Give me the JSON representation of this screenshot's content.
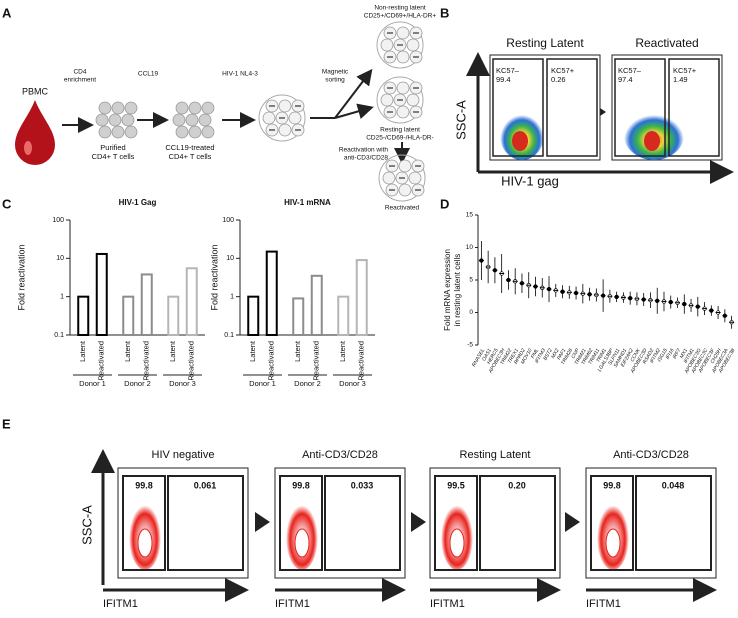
{
  "panel_labels": [
    "A",
    "B",
    "C",
    "D",
    "E"
  ],
  "panel_a": {
    "source": "PBMC",
    "step1": [
      "CD4",
      "enrichment"
    ],
    "cells1": [
      "Purified",
      "CD4+ T cells"
    ],
    "step2": "CCL19",
    "cells2": [
      "CCL19-treated",
      "CD4+ T cells"
    ],
    "step3": "HIV-1 NL4-3",
    "step4": [
      "Magnetic",
      "sorting"
    ],
    "nonresting": [
      "Non-resting latent",
      "CD25+/CD69+/HLA-DR+"
    ],
    "resting": [
      "Resting latent",
      "CD25-/CD69-/HLA-DR-"
    ],
    "step5": [
      "Reactivation with",
      "anti-CD3/CD28"
    ],
    "result": "Reactivated"
  },
  "panel_b": {
    "y_label": "SSC-A",
    "x_label": "HIV-1 gag",
    "plots": [
      {
        "title": "Resting Latent",
        "gates": [
          {
            "name": "KC57–",
            "value": "99.4"
          },
          {
            "name": "KC57+",
            "value": "0.26"
          }
        ]
      },
      {
        "title": "Reactivated",
        "gates": [
          {
            "name": "KC57–",
            "value": "97.4"
          },
          {
            "name": "KC57+",
            "value": "1.49"
          }
        ]
      }
    ]
  },
  "chart_data": [
    {
      "type": "bar",
      "title": "HIV-1 Gag",
      "y_label": "Fold reactivation",
      "categories": [
        "Latent",
        "Reactivated",
        "Latent",
        "Reactivated",
        "Latent",
        "Reactivated"
      ],
      "groups": [
        "Donor 1",
        "Donor 2",
        "Donor 3"
      ],
      "values": [
        1,
        13,
        1,
        3.8,
        1,
        5.5
      ],
      "colors": [
        "#000000",
        "#000000",
        "#8c8c8c",
        "#8c8c8c",
        "#b5b5b5",
        "#b5b5b5"
      ],
      "log_scale": true,
      "ylim": [
        0.1,
        100
      ],
      "yticks": [
        0.1,
        1,
        10,
        100
      ]
    },
    {
      "type": "bar",
      "title": "HIV-1 mRNA",
      "y_label": "Fold reactivation",
      "categories": [
        "Latent",
        "Reactivated",
        "Latent",
        "Reactivated",
        "Latent",
        "Reactivated"
      ],
      "groups": [
        "Donor 1",
        "Donor 2",
        "Donor 3"
      ],
      "values": [
        1,
        15,
        0.9,
        3.5,
        1,
        9
      ],
      "colors": [
        "#000000",
        "#000000",
        "#8c8c8c",
        "#8c8c8c",
        "#b5b5b5",
        "#b5b5b5"
      ],
      "log_scale": true,
      "ylim": [
        0.1,
        100
      ],
      "yticks": [
        0.1,
        1,
        10,
        100
      ]
    },
    {
      "type": "dot",
      "y_label": [
        "Fold mRNA expression",
        "in resting latent cells"
      ],
      "categories": [
        "RNASEL",
        "OAS1",
        "HERC5",
        "APOBEC3H",
        "TRIM22",
        "TREX1",
        "RPRD2",
        "MOV10",
        "PML",
        "IFITM3",
        "BST2",
        "MX2",
        "PAF1",
        "TRIM26",
        "CNP",
        "TRIM21",
        "TRIM62",
        "TRIM11",
        "TRIM1",
        "LGALS3BP",
        "SLFN11",
        "SAMHD1",
        "EIF2AK2",
        "CCNK",
        "APOBEC3D",
        "RSAD2",
        "IFITM2",
        "ISG15",
        "IFI16",
        "IRF7",
        "MX1",
        "IFITM1",
        "APOBEC3G",
        "APOBEC3C",
        "APOBEC3F",
        "CH25H",
        "APOBEC3A",
        "APOBEC3B"
      ],
      "values": [
        8,
        7,
        6.5,
        6,
        5,
        4.8,
        4.5,
        4.2,
        4,
        3.8,
        3.6,
        3.4,
        3.2,
        3.1,
        3,
        2.9,
        2.8,
        2.7,
        2.6,
        2.5,
        2.4,
        2.3,
        2.2,
        2.1,
        2,
        1.9,
        1.8,
        1.7,
        1.6,
        1.5,
        1.3,
        1.1,
        0.9,
        0.6,
        0.3,
        0,
        -0.5,
        -1.5
      ],
      "errors": [
        3,
        2.5,
        2,
        3,
        1.5,
        2,
        1.5,
        2,
        1.5,
        1.5,
        2,
        1,
        1,
        1,
        1,
        1.5,
        1,
        1,
        2.5,
        1,
        0.8,
        0.8,
        1,
        1,
        1,
        1.2,
        2,
        1.5,
        1,
        0.8,
        1.5,
        1,
        1.5,
        1,
        0.8,
        1,
        1,
        1
      ],
      "color": "#000000",
      "ylim": [
        -5,
        15
      ],
      "yticks": [
        -5,
        0,
        5,
        10,
        15
      ]
    }
  ],
  "panel_e": {
    "y_label": "SSC-A",
    "x_label": "IFITM1",
    "plots": [
      {
        "title": "HIV negative",
        "gates": [
          "99.8",
          "0.061"
        ]
      },
      {
        "title": "Anti-CD3/CD28",
        "gates": [
          "99.8",
          "0.033"
        ]
      },
      {
        "title": "Resting Latent",
        "gates": [
          "99.5",
          "0.20"
        ]
      },
      {
        "title": "Anti-CD3/CD28",
        "gates": [
          "99.8",
          "0.048"
        ]
      }
    ]
  }
}
